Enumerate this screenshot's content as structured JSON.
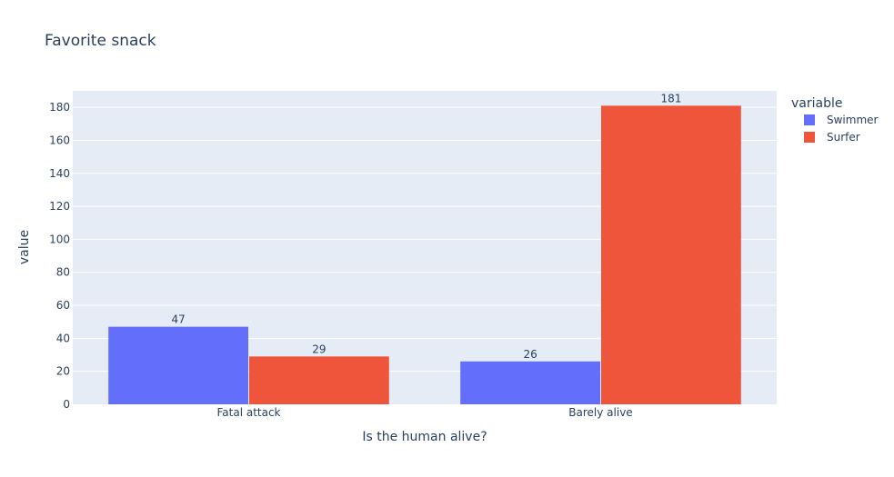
{
  "chart_data": {
    "type": "bar",
    "title": "Favorite snack",
    "xlabel": "Is the human alive?",
    "ylabel": "value",
    "categories": [
      "Fatal attack",
      "Barely alive"
    ],
    "series": [
      {
        "name": "Swimmer",
        "values": [
          47,
          26
        ],
        "color": "#636efa"
      },
      {
        "name": "Surfer",
        "values": [
          29,
          181
        ],
        "color": "#ef553b"
      }
    ],
    "ylim": [
      0,
      190
    ],
    "yticks": [
      0,
      20,
      40,
      60,
      80,
      100,
      120,
      140,
      160,
      180
    ],
    "legend": {
      "title": "variable",
      "placement": "top-right"
    },
    "grid": true,
    "plot_background": "#e5ecf6"
  }
}
